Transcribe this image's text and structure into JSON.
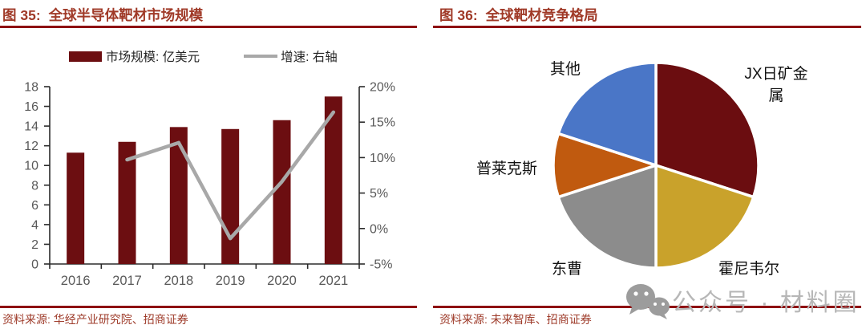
{
  "figures": [
    {
      "title_prefix": "图 35:",
      "title": "全球半导体靶材市场规模",
      "source": "资料来源: 华经产业研究院、招商证券",
      "legend": [
        {
          "label": "市场规模: 亿美元",
          "swatch": "bar",
          "color": "#6C0E11"
        },
        {
          "label": "增速: 右轴",
          "swatch": "line",
          "color": "#A8A8A8"
        }
      ],
      "chart_data": {
        "type": "bar",
        "categories": [
          "2016",
          "2017",
          "2018",
          "2019",
          "2020",
          "2021"
        ],
        "series": [
          {
            "name": "市场规模: 亿美元",
            "type": "bar",
            "axis": "left",
            "color": "#6C0E11",
            "values": [
              11.3,
              12.4,
              13.9,
              13.7,
              14.6,
              17.0
            ]
          },
          {
            "name": "增速: 右轴",
            "type": "line",
            "axis": "right",
            "color": "#A8A8A8",
            "values": [
              null,
              9.7,
              12.1,
              -1.4,
              6.6,
              16.4
            ]
          }
        ],
        "left_axis": {
          "min": 0,
          "max": 18,
          "step": 2
        },
        "right_axis": {
          "min": -5,
          "max": 20,
          "step": 5,
          "suffix": "%"
        }
      }
    },
    {
      "title_prefix": "图 36:",
      "title": "全球靶材竞争格局",
      "source": "资料来源: 未来智库、招商证券",
      "chart_data": {
        "type": "pie",
        "start_angle_deg": 0,
        "slices": [
          {
            "label": "JX日矿金属",
            "value": 30,
            "color": "#6B0D10"
          },
          {
            "label": "霍尼韦尔",
            "value": 20,
            "color": "#C9A22B"
          },
          {
            "label": "东曹",
            "value": 20,
            "color": "#8C8C8C"
          },
          {
            "label": "普莱克斯",
            "value": 10,
            "color": "#C05A0F"
          },
          {
            "label": "其他",
            "value": 20,
            "color": "#4A76C7"
          }
        ]
      }
    }
  ],
  "watermark": {
    "icon": "wechat",
    "text": "公众号 · 材料圈"
  },
  "colors": {
    "accent_rule": "#8E1012",
    "title_text": "#A03A28",
    "axis_label": "#595959"
  }
}
